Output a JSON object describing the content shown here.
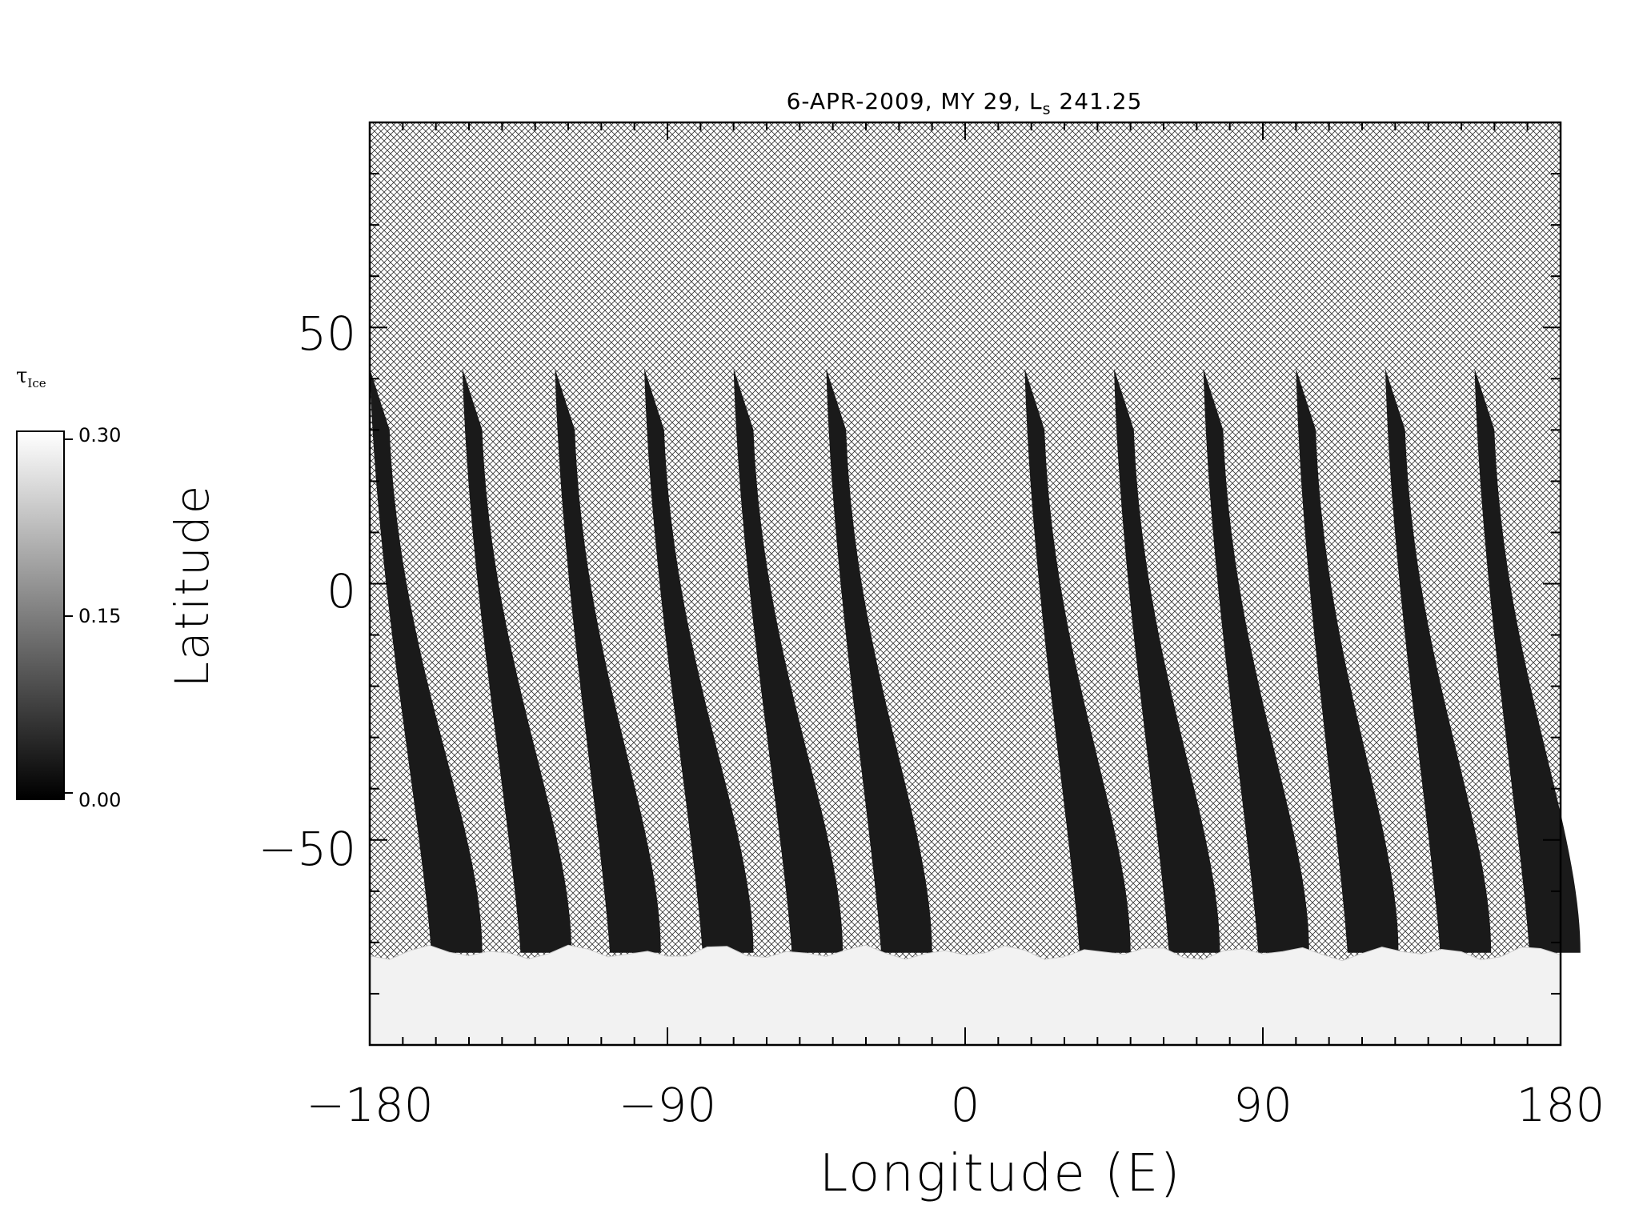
{
  "chart_data": {
    "type": "heatmap",
    "title": "6-APR-2009, MY 29,  L",
    "title_sub": "s",
    "title_suffix": " 241.25",
    "xlabel": "Longitude (E)",
    "ylabel": "Latitude",
    "xlim": [
      -180,
      180
    ],
    "ylim": [
      -90,
      90
    ],
    "x_ticks": [
      "−180",
      "−90",
      "0",
      "90",
      "180"
    ],
    "y_ticks": [
      "50",
      "0",
      "−50"
    ],
    "colorbar": {
      "label": "τ",
      "label_sub": "Ice",
      "ticks": [
        "0.30",
        "0.15",
        "0.00"
      ],
      "range": [
        0.0,
        0.3
      ],
      "colormap": "grayscale"
    },
    "no_data_pattern": "crosshatch",
    "orbit_swaths": [
      {
        "lon_top": -180,
        "lon_bottom": -160,
        "lat_top": 42,
        "lat_bottom": -72
      },
      {
        "lon_top": -152,
        "lon_bottom": -133,
        "lat_top": 42,
        "lat_bottom": -72
      },
      {
        "lon_top": -124,
        "lon_bottom": -106,
        "lat_top": 42,
        "lat_bottom": -72
      },
      {
        "lon_top": -97,
        "lon_bottom": -78,
        "lat_top": 42,
        "lat_bottom": -72
      },
      {
        "lon_top": -70,
        "lon_bottom": -51,
        "lat_top": 42,
        "lat_bottom": -72
      },
      {
        "lon_top": -42,
        "lon_bottom": -24,
        "lat_top": 42,
        "lat_bottom": -72
      },
      {
        "lon_top": 18,
        "lon_bottom": 36,
        "lat_top": 42,
        "lat_bottom": -72
      },
      {
        "lon_top": 45,
        "lon_bottom": 63,
        "lat_top": 42,
        "lat_bottom": -72
      },
      {
        "lon_top": 72,
        "lon_bottom": 90,
        "lat_top": 42,
        "lat_bottom": -72
      },
      {
        "lon_top": 100,
        "lon_bottom": 117,
        "lat_top": 42,
        "lat_bottom": -72
      },
      {
        "lon_top": 127,
        "lon_bottom": 145,
        "lat_top": 42,
        "lat_bottom": -72
      },
      {
        "lon_top": 154,
        "lon_bottom": 172,
        "lat_top": 42,
        "lat_bottom": -72
      }
    ],
    "polar_hood_ice": {
      "lat_north": -72,
      "lat_south": -90,
      "value": 0.3
    }
  }
}
